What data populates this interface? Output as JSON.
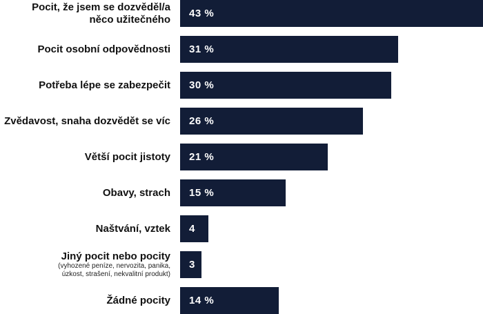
{
  "chart_data": {
    "type": "bar",
    "orientation": "horizontal",
    "title": "",
    "xlabel": "",
    "ylabel": "",
    "xlim": [
      0,
      43
    ],
    "grid": false,
    "legend": false,
    "bar_color": "#121d37",
    "value_label_color": "#ffffff",
    "category_label_color": "#111111",
    "categories": [
      "Pocit, že jsem se dozvěděl/a něco užitečného",
      "Pocit osobní odpovědnosti",
      "Potřeba lépe se zabezpečit",
      "Zvědavost, snaha dozvědět se víc",
      "Větší pocit jistoty",
      "Obavy, strach",
      "Naštvání, vztek",
      "Jiný pocit nebo pocity (vyhozené peníze, nervozita, panika, úzkost, strašení, nekvalitní produkt)",
      "Žádné pocity"
    ],
    "values": [
      43,
      31,
      30,
      26,
      21,
      15,
      4,
      3,
      14
    ],
    "rows": [
      {
        "line1": "Pocit, že jsem se dozvěděl/a",
        "line2": "něco užitečného",
        "value_label": "43 %"
      },
      {
        "line1": "Pocit osobní odpovědnosti",
        "value_label": "31 %"
      },
      {
        "line1": "Potřeba lépe se zabezpečit",
        "value_label": "30 %"
      },
      {
        "line1": "Zvědavost, snaha dozvědět se víc",
        "value_label": "26 %"
      },
      {
        "line1": "Větší pocit jistoty",
        "value_label": "21 %"
      },
      {
        "line1": "Obavy, strach",
        "value_label": "15 %"
      },
      {
        "line1": "Naštvání, vztek",
        "value_label": "4"
      },
      {
        "line1": "Jiný pocit nebo pocity",
        "sub1": "(vyhozené peníze, nervozita, panika,",
        "sub2": "úzkost, strašení, nekvalitní produkt)",
        "value_label": "3"
      },
      {
        "line1": "Žádné pocity",
        "value_label": "14 %"
      }
    ]
  }
}
